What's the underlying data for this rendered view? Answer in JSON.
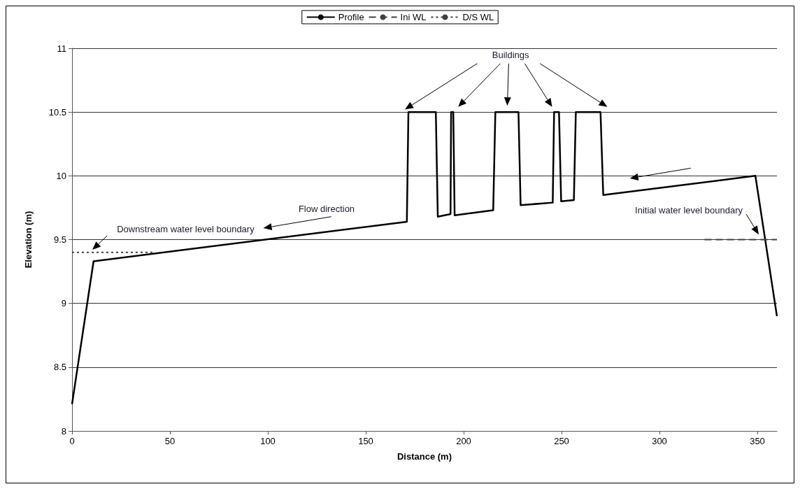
{
  "chart_data": {
    "type": "line",
    "xlabel": "Distance (m)",
    "ylabel": "Elevation (m)",
    "xlim": [
      0,
      360
    ],
    "xticks": [
      0,
      50,
      100,
      150,
      200,
      250,
      300,
      350
    ],
    "ylim": [
      8,
      11
    ],
    "yticks": [
      8,
      8.5,
      9,
      9.5,
      10,
      10.5,
      11
    ],
    "grid": "y",
    "legend": "top",
    "marker": "none",
    "series": [
      {
        "name": "Profile",
        "color": "#000000",
        "line_style": "solid",
        "x": [
          0,
          11,
          171,
          171.8,
          172.9,
          185.8,
          186.8,
          193.3,
          193.6,
          194.7,
          195.4,
          215.1,
          216.2,
          228,
          229.1,
          245.5,
          246.2,
          248.7,
          249.8,
          256.3,
          257.3,
          269.9,
          271.3,
          349,
          360
        ],
        "values": [
          8.21,
          9.33,
          9.64,
          10.5,
          10.5,
          10.5,
          9.68,
          9.7,
          10.5,
          10.5,
          9.69,
          9.73,
          10.5,
          10.5,
          9.77,
          9.79,
          10.5,
          10.5,
          9.8,
          9.81,
          10.5,
          10.5,
          9.85,
          10,
          8.9
        ]
      },
      {
        "name": "Ini WL",
        "color": "#404040",
        "line_style": "dashed",
        "x": [
          323,
          360
        ],
        "values": [
          9.5,
          9.5
        ]
      },
      {
        "name": "D/S WL",
        "color": "#404040",
        "line_style": "dotted",
        "x": [
          0,
          41
        ],
        "values": [
          9.4,
          9.4
        ]
      }
    ],
    "annotations": [
      "Buildings",
      "Flow direction",
      "Downstream water level boundary",
      "Initial water level boundary"
    ]
  }
}
